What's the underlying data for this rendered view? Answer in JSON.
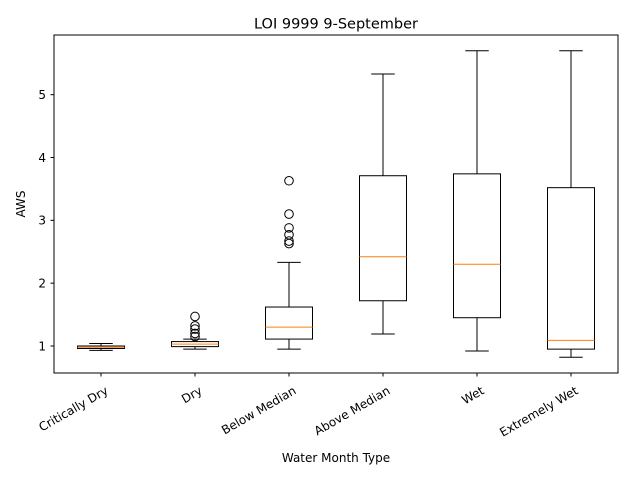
{
  "chart_data": {
    "type": "box",
    "title": "LOI 9999 9-September",
    "xlabel": "Water Month Type",
    "ylabel": "AWS",
    "categories": [
      "Critically Dry",
      "Dry",
      "Below Median",
      "Above Median",
      "Wet",
      "Extremely Wet"
    ],
    "ylim": [
      0.57,
      5.95
    ],
    "yticks": [
      1,
      2,
      3,
      4,
      5
    ],
    "grid": false,
    "median_color": "#ff7f0e",
    "box_color": "#000000",
    "boxes": [
      {
        "category": "Critically Dry",
        "whisker_low": 0.93,
        "q1": 0.96,
        "median": 0.98,
        "q3": 1.0,
        "whisker_high": 1.04,
        "outliers": []
      },
      {
        "category": "Dry",
        "whisker_low": 0.95,
        "q1": 0.99,
        "median": 1.03,
        "q3": 1.07,
        "whisker_high": 1.11,
        "outliers": [
          1.15,
          1.2,
          1.27,
          1.32,
          1.47
        ]
      },
      {
        "category": "Below Median",
        "whisker_low": 0.95,
        "q1": 1.11,
        "median": 1.3,
        "q3": 1.62,
        "whisker_high": 2.33,
        "outliers": [
          2.63,
          2.67,
          2.77,
          2.88,
          3.1,
          3.63
        ]
      },
      {
        "category": "Above Median",
        "whisker_low": 1.19,
        "q1": 1.72,
        "median": 2.42,
        "q3": 3.71,
        "whisker_high": 5.33,
        "outliers": []
      },
      {
        "category": "Wet",
        "whisker_low": 0.92,
        "q1": 1.45,
        "median": 2.3,
        "q3": 3.74,
        "whisker_high": 5.7,
        "outliers": []
      },
      {
        "category": "Extremely Wet",
        "whisker_low": 0.82,
        "q1": 0.95,
        "median": 1.09,
        "q3": 3.52,
        "whisker_high": 5.7,
        "outliers": []
      }
    ]
  }
}
